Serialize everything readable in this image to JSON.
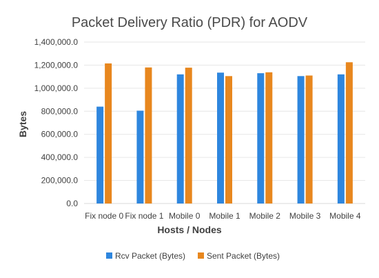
{
  "chart_data": {
    "type": "bar",
    "title": "Packet Delivery Ratio (PDR) for AODV",
    "xlabel": "Hosts / Nodes",
    "ylabel": "Bytes",
    "categories": [
      "Fix node 0",
      "Fix node 1",
      "Mobile 0",
      "Mobile 1",
      "Mobile 2",
      "Mobile 3",
      "Mobile 4"
    ],
    "series": [
      {
        "name": "Rcv Packet (Bytes)",
        "color": "#2E86DE",
        "values": [
          840000,
          805000,
          1120000,
          1135000,
          1130000,
          1105000,
          1120000
        ]
      },
      {
        "name": "Sent Packet (Bytes)",
        "color": "#E8871E",
        "values": [
          1215000,
          1180000,
          1178000,
          1105000,
          1138000,
          1110000,
          1225000
        ]
      }
    ],
    "ylim": [
      0,
      1400000
    ],
    "yticks": [
      0,
      200000,
      400000,
      600000,
      800000,
      1000000,
      1200000,
      1400000
    ],
    "ytick_labels": [
      "0.0",
      "200,000.0",
      "400,000.0",
      "600,000.0",
      "800,000.0",
      "1,000,000.0",
      "1,200,000.0",
      "1,400,000.0"
    ],
    "grid": true,
    "legend_position": "bottom-center"
  }
}
